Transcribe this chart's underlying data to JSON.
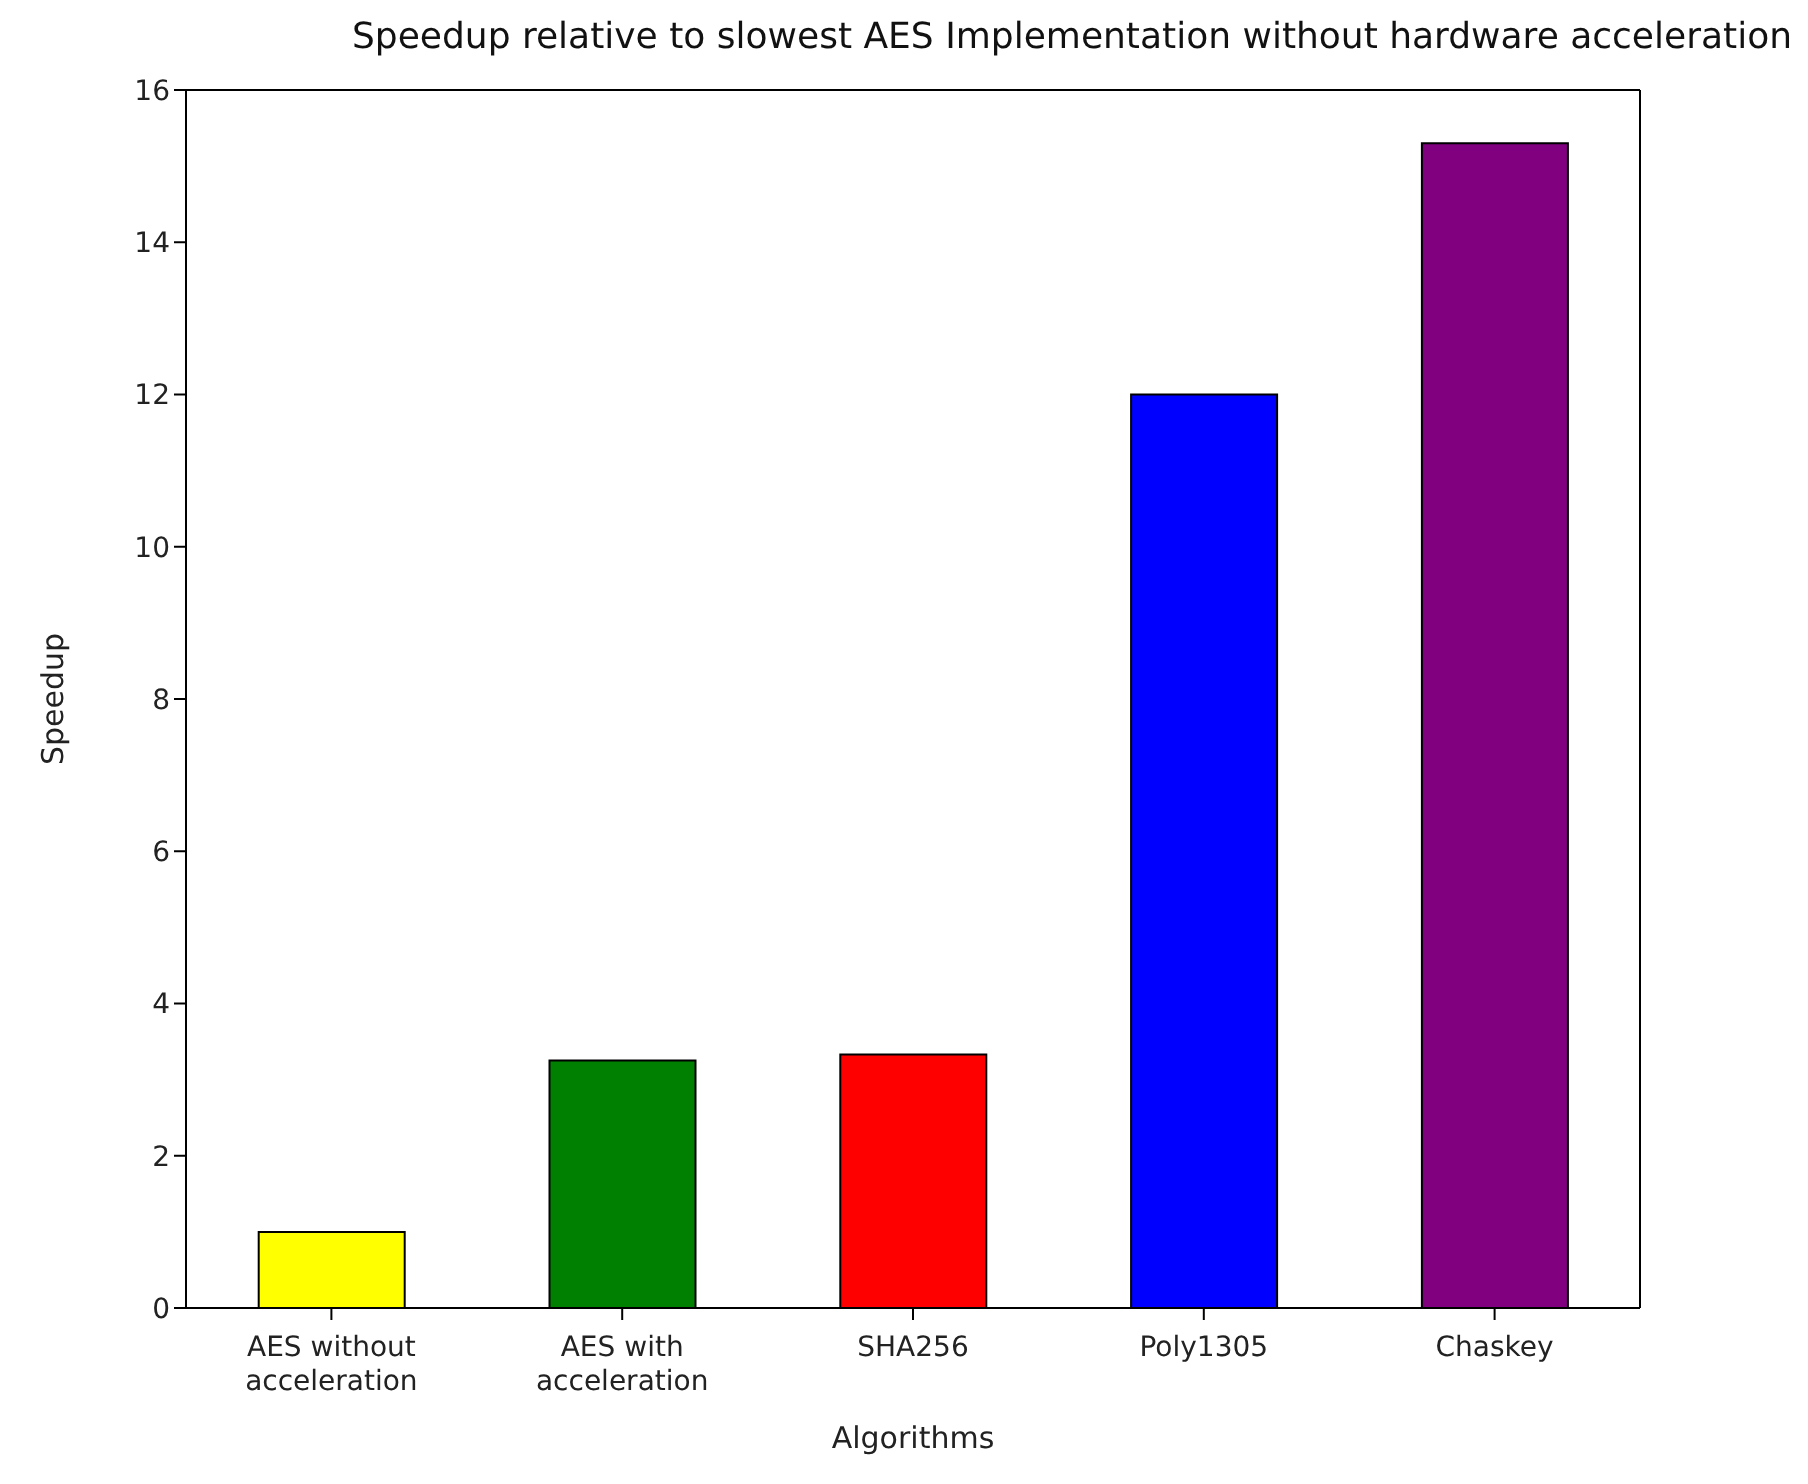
{
  "chart_data": {
    "type": "bar",
    "title": "Speedup relative to slowest AES Implementation without hardware acceleration",
    "xlabel": "Algorithms",
    "ylabel": "Speedup",
    "categories": [
      "AES without\nacceleration",
      "AES with\nacceleration",
      "SHA256",
      "Poly1305",
      "Chaskey"
    ],
    "values": [
      1.0,
      3.25,
      3.33,
      12.0,
      15.3
    ],
    "colors": [
      "#ffff00",
      "#008000",
      "#ff0000",
      "#0000ff",
      "#800080"
    ],
    "ylim": [
      0,
      16
    ],
    "yticks": [
      0,
      2,
      4,
      6,
      8,
      10,
      12,
      14,
      16
    ],
    "grid": false
  }
}
